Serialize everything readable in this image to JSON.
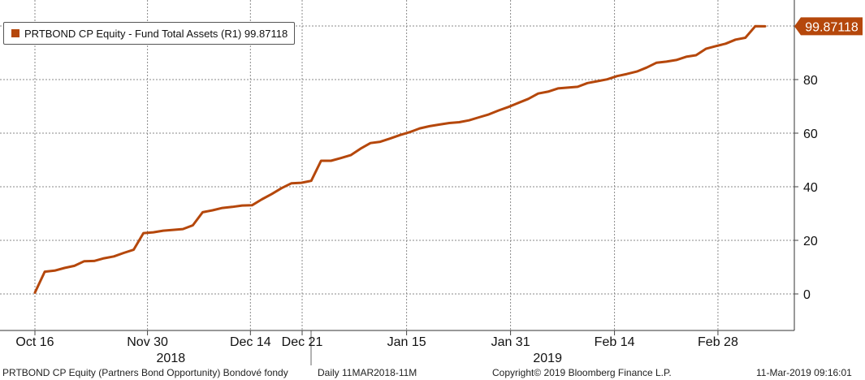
{
  "chart_data": {
    "type": "line",
    "series": [
      {
        "name": "PRTBOND CP Equity - Fund Total Assets (R1)",
        "last_value": "99.87118",
        "color": "#b5470b",
        "values": [
          0.5,
          8.3,
          8.7,
          9.7,
          10.5,
          12.2,
          12.3,
          13.3,
          14.0,
          15.3,
          16.5,
          22.7,
          23.0,
          23.6,
          23.9,
          24.2,
          25.6,
          30.5,
          31.2,
          32.1,
          32.5,
          33.0,
          33.1,
          35.3,
          37.3,
          39.5,
          41.3,
          41.5,
          42.2,
          49.7,
          49.7,
          50.7,
          51.8,
          54.2,
          56.3,
          56.8,
          58.0,
          59.3,
          60.4,
          61.8,
          62.6,
          63.2,
          63.8,
          64.1,
          64.8,
          65.9,
          67.0,
          68.5,
          69.8,
          71.3,
          72.8,
          74.8,
          75.5,
          76.7,
          77.0,
          77.3,
          78.7,
          79.4,
          80.1,
          81.3,
          82.1,
          83.0,
          84.5,
          86.3,
          86.7,
          87.3,
          88.5,
          89.1,
          91.5,
          92.5,
          93.4,
          94.9,
          95.6,
          99.9,
          99.87
        ]
      }
    ],
    "yaxis": {
      "side": "right",
      "min": -14,
      "max": 109,
      "ticks": [
        0,
        20,
        40,
        60,
        80,
        100
      ],
      "tick_labels": [
        "0",
        "20",
        "40",
        "60",
        "80",
        ""
      ]
    },
    "xaxis": {
      "tick_labels": [
        {
          "index": 0,
          "label": "Oct 16"
        },
        {
          "index": 22.2,
          "label": "Nov 30"
        },
        {
          "index": 42.5,
          "label": "Dec 14"
        },
        {
          "index": 52.7,
          "label": "Dec 21"
        },
        {
          "index": 73.3,
          "label": "Jan 15"
        },
        {
          "index": 93.8,
          "label": "Jan 31"
        },
        {
          "index": 114.3,
          "label": "Feb 14"
        },
        {
          "index": 134.7,
          "label": "Feb 28"
        }
      ],
      "index_span": [
        0,
        144
      ],
      "years": [
        {
          "index": 26.8,
          "label": "2018"
        },
        {
          "index": 101.1,
          "label": "2019"
        }
      ]
    },
    "grid": true
  },
  "legend": {
    "label": "PRTBOND CP Equity - Fund Total Assets (R1) 99.87118"
  },
  "last_price_tag": "99.87118",
  "footer": {
    "left": "PRTBOND CP Equity (Partners Bond Opportunity) Bondové fondy",
    "middle": "Daily 11MAR2018-11M",
    "copyright": "Copyright© 2019 Bloomberg Finance L.P.",
    "timestamp": "11-Mar-2019 09:16:01"
  },
  "colors": {
    "line": "#b5470b",
    "tag_bg": "#b5470b",
    "tag_text": "#ffffff",
    "grid": "#888888"
  }
}
